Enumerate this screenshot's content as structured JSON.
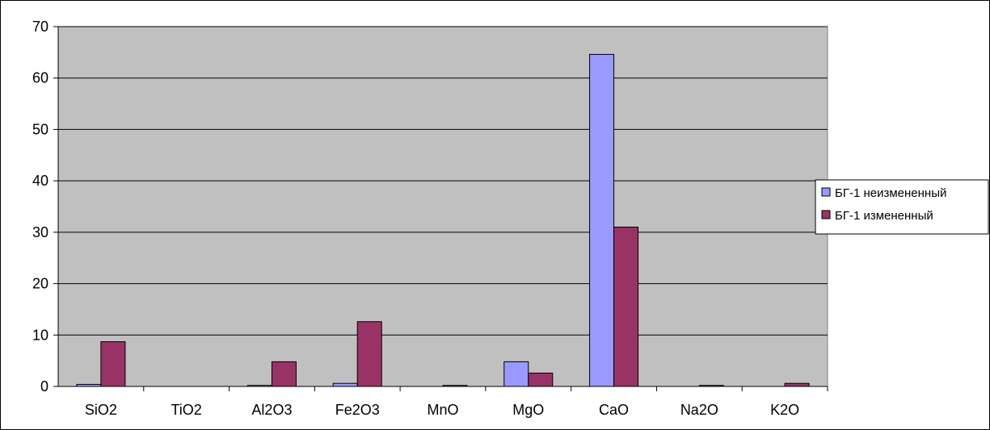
{
  "chart_data": {
    "type": "bar",
    "title": "",
    "xlabel": "",
    "ylabel": "",
    "categories": [
      "SiO2",
      "TiO2",
      "Al2O3",
      "Fe2O3",
      "MnO",
      "MgO",
      "CaO",
      "Na2O",
      "K2O"
    ],
    "series": [
      {
        "name": "БГ-1 неизмененный",
        "color": "#9999ff",
        "values": [
          0.4,
          0.0,
          0.2,
          0.6,
          0.0,
          4.8,
          64.6,
          0.0,
          0.0
        ]
      },
      {
        "name": "БГ-1 измененный",
        "color": "#993366",
        "values": [
          8.7,
          0.0,
          4.8,
          12.6,
          0.2,
          2.6,
          31.0,
          0.2,
          0.6
        ]
      }
    ],
    "ylim": [
      0,
      70
    ],
    "yticks": [
      0,
      10,
      20,
      30,
      40,
      50,
      60,
      70
    ],
    "grid": true,
    "plot_background": "#c0c0c0",
    "legend_position": "right"
  }
}
